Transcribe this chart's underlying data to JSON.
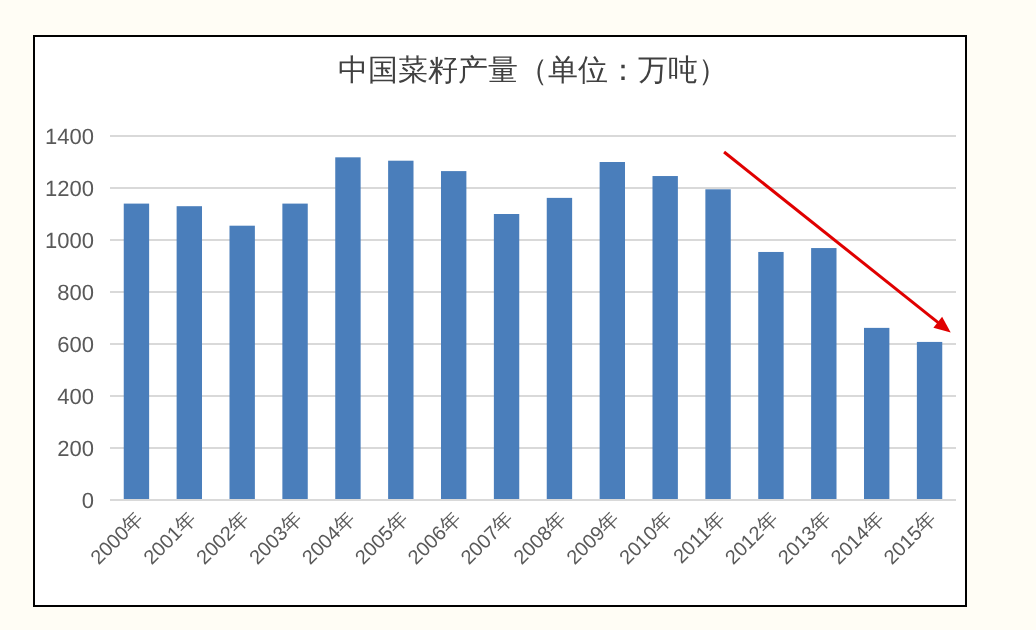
{
  "chart_data": {
    "type": "bar",
    "title": "中国菜籽产量（单位：万吨）",
    "categories": [
      "2000年",
      "2001年",
      "2002年",
      "2003年",
      "2004年",
      "2005年",
      "2006年",
      "2007年",
      "2008年",
      "2009年",
      "2010年",
      "2011年",
      "2012年",
      "2013年",
      "2014年",
      "2015年"
    ],
    "values": [
      1140,
      1130,
      1055,
      1140,
      1318,
      1305,
      1265,
      1100,
      1162,
      1300,
      1246,
      1195,
      954,
      969,
      662,
      608
    ],
    "color": "#4a7ebb",
    "ylim": [
      0,
      1400
    ],
    "yticks": [
      0,
      200,
      400,
      600,
      800,
      1000,
      1200,
      1400
    ],
    "grid": "y"
  }
}
